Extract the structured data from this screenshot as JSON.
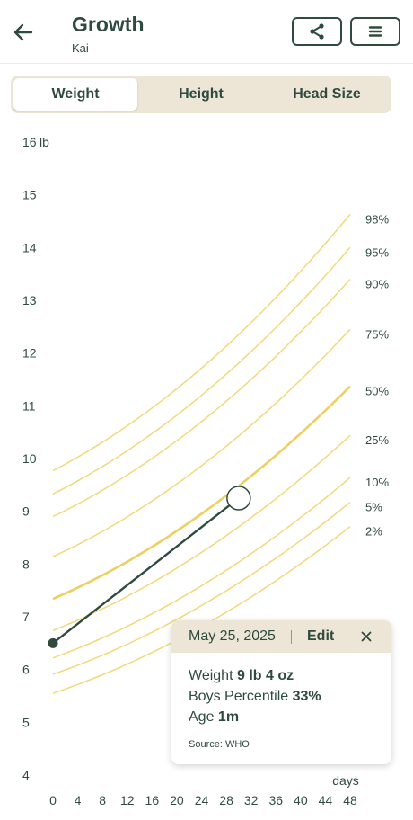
{
  "header": {
    "title": "Growth",
    "subtitle": "Kai",
    "icons": {
      "back": "back-arrow-icon",
      "share": "share-icon",
      "menu": "menu-icon"
    }
  },
  "tabs": [
    {
      "label": "Weight",
      "active": true
    },
    {
      "label": "Height",
      "active": false
    },
    {
      "label": "Head Size",
      "active": false
    }
  ],
  "colors": {
    "primary": "#2f4a3f",
    "accent_bg": "#ede6d6",
    "percentile_curve": "#f1d979",
    "median_curve": "#ecd063"
  },
  "chart_data": {
    "type": "line",
    "ylabel": "lb",
    "xlabel": "days",
    "ylim": [
      4,
      16
    ],
    "xlim": [
      0,
      48
    ],
    "y_ticks": [
      "4",
      "5",
      "6",
      "7",
      "8",
      "9",
      "10",
      "11",
      "12",
      "13",
      "14",
      "15",
      "16"
    ],
    "x_ticks": [
      "0",
      "4",
      "8",
      "12",
      "16",
      "20",
      "24",
      "28",
      "32",
      "36",
      "40",
      "44",
      "48"
    ],
    "percentiles": [
      {
        "name": "98%",
        "start": 9.77,
        "end": 14.63
      },
      {
        "name": "95%",
        "start": 9.33,
        "end": 14.0
      },
      {
        "name": "90%",
        "start": 8.9,
        "end": 13.4
      },
      {
        "name": "75%",
        "start": 8.14,
        "end": 12.45
      },
      {
        "name": "50%",
        "start": 7.34,
        "end": 11.37
      },
      {
        "name": "25%",
        "start": 6.74,
        "end": 10.44
      },
      {
        "name": "10%",
        "start": 6.22,
        "end": 9.64
      },
      {
        "name": "5%",
        "start": 5.91,
        "end": 9.17
      },
      {
        "name": "2%",
        "start": 5.55,
        "end": 8.71
      }
    ],
    "measurements": [
      {
        "x": 0,
        "y": 6.5
      },
      {
        "x": 30,
        "y": 9.25
      }
    ]
  },
  "tooltip": {
    "date": "May 25, 2025",
    "edit": "Edit",
    "weight_label": "Weight",
    "weight_value": "9 lb 4 oz",
    "percentile_label": "Boys Percentile",
    "percentile_value": "33%",
    "age_label": "Age",
    "age_value": "1m",
    "source": "Source: WHO"
  }
}
